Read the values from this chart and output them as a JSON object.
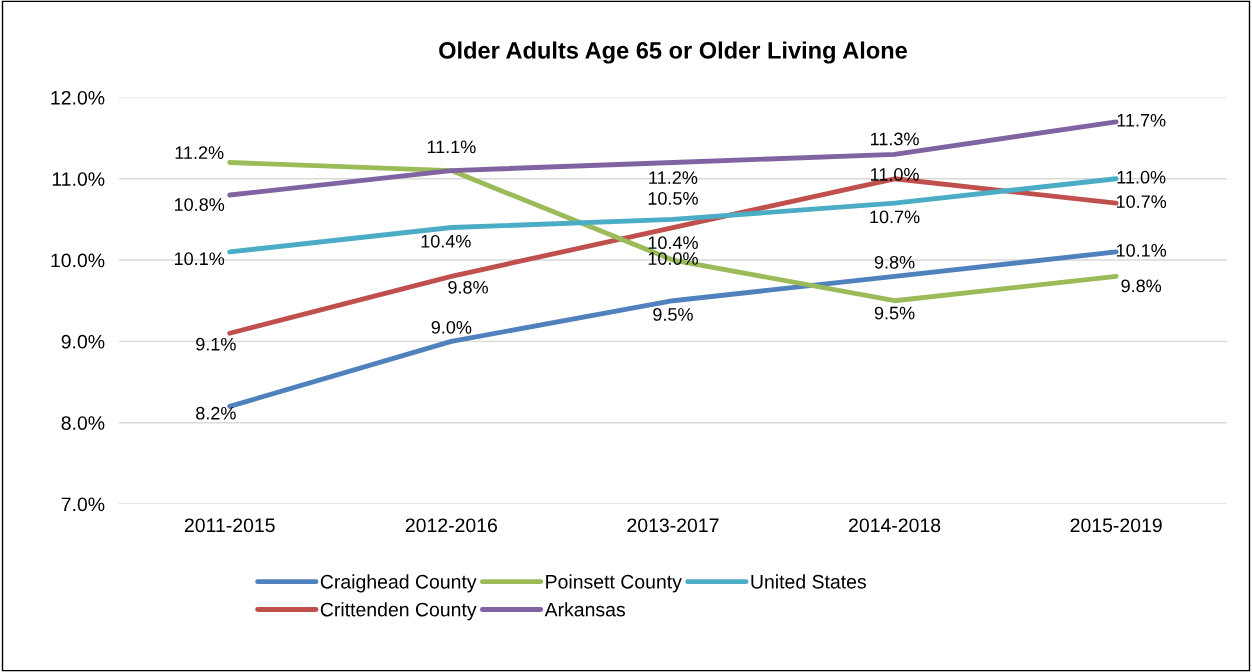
{
  "chart_data": {
    "type": "line",
    "title": "Older Adults Age 65 or Older Living Alone",
    "categories": [
      "2011-2015",
      "2012-2016",
      "2013-2017",
      "2014-2018",
      "2015-2019"
    ],
    "series": [
      {
        "name": "Craighead County",
        "color": "#4f81bd",
        "values": [
          8.2,
          9.0,
          9.5,
          9.8,
          10.1
        ],
        "value_labels": [
          "8.2%",
          "9.0%",
          "9.5%",
          "9.8%",
          "10.1%"
        ]
      },
      {
        "name": "Crittenden County",
        "color": "#c0504d",
        "values": [
          9.1,
          9.8,
          10.4,
          11.0,
          10.7
        ],
        "value_labels": [
          "9.1%",
          "9.8%",
          "10.4%",
          "11.0%",
          "10.7%"
        ]
      },
      {
        "name": "Poinsett County",
        "color": "#9bbb59",
        "values": [
          11.2,
          11.1,
          10.0,
          9.5,
          9.8
        ],
        "value_labels": [
          "11.2%",
          null,
          "10.0%",
          "9.5%",
          "9.8%"
        ]
      },
      {
        "name": "Arkansas",
        "color": "#8064a2",
        "values": [
          10.8,
          11.1,
          11.2,
          11.3,
          11.7
        ],
        "value_labels": [
          "10.8%",
          "11.1%",
          "11.2%",
          "11.3%",
          "11.7%"
        ]
      },
      {
        "name": "United States",
        "color": "#4bacc6",
        "values": [
          10.1,
          10.4,
          10.5,
          10.7,
          11.0
        ],
        "value_labels": [
          "10.1%",
          "10.4%",
          "10.5%",
          "10.7%",
          "11.0%"
        ]
      }
    ],
    "ylim": [
      7.0,
      12.0
    ],
    "yticks": [
      {
        "value": 7.0,
        "label": "7.0%"
      },
      {
        "value": 8.0,
        "label": "8.0%"
      },
      {
        "value": 9.0,
        "label": "9.0%"
      },
      {
        "value": 10.0,
        "label": "10.0%"
      },
      {
        "value": 11.0,
        "label": "11.0%"
      },
      {
        "value": 12.0,
        "label": "12.0%"
      }
    ],
    "grid": "y",
    "legend": "bottom",
    "marker": "none",
    "line_style": "solid"
  }
}
